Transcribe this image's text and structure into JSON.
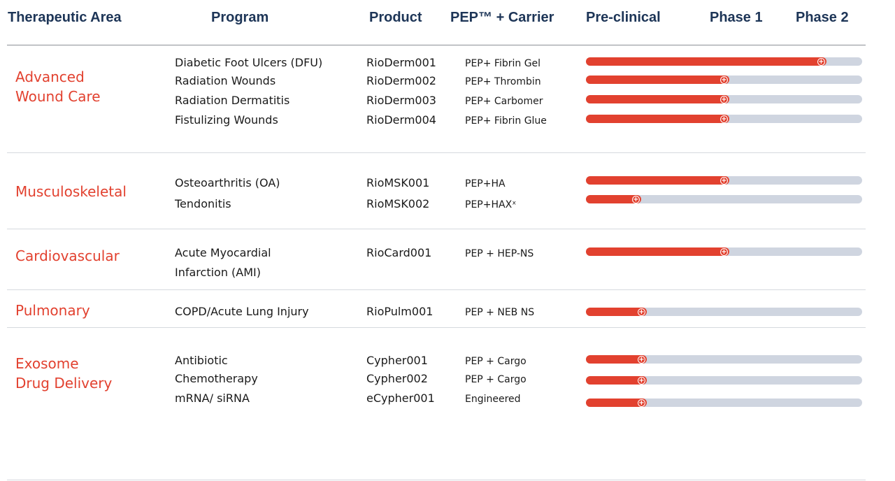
{
  "headers": {
    "area": "Therapeutic Area",
    "program": "Program",
    "product": "Product",
    "carrier": "PEP™ + Carrier",
    "preclinical": "Pre-clinical",
    "phase1": "Phase 1",
    "phase2": "Phase 2"
  },
  "colors": {
    "accent": "#e2412f",
    "header": "#1d3557",
    "track": "#cfd5e0"
  },
  "knob_icon": "plus-circle-icon",
  "areas": [
    {
      "name": "Advanced\nWound Care"
    },
    {
      "name": "Musculoskeletal"
    },
    {
      "name": "Cardiovascular"
    },
    {
      "name": "Pulmonary"
    },
    {
      "name": "Exosome\nDrug Delivery"
    }
  ],
  "programs": [
    {
      "program": "Diabetic Foot Ulcers (DFU)",
      "product": "RioDerm001",
      "carrier": "PEP+ Fibrin Gel"
    },
    {
      "program": "Radiation Wounds",
      "product": "RioDerm002",
      "carrier": "PEP+ Thrombin"
    },
    {
      "program": "Radiation Dermatitis",
      "product": "RioDerm003",
      "carrier": "PEP+ Carbomer"
    },
    {
      "program": "Fistulizing Wounds",
      "product": "RioDerm004",
      "carrier": "PEP+ Fibrin Glue"
    },
    {
      "program": "Osteoarthritis (OA)",
      "product": "RioMSK001",
      "carrier": "PEP+HA"
    },
    {
      "program": "Tendonitis",
      "product": "RioMSK002",
      "carrier": "PEP+HAXˣ"
    },
    {
      "program": "Acute Myocardial",
      "product": "RioCard001",
      "carrier": "PEP + HEP-NS"
    },
    {
      "program": "Infarction (AMI)",
      "product": "",
      "carrier": ""
    },
    {
      "program": "COPD/Acute Lung Injury",
      "product": "RioPulm001",
      "carrier": "PEP + NEB NS"
    },
    {
      "program": "Antibiotic",
      "product": "Cypher001",
      "carrier": "PEP + Cargo"
    },
    {
      "program": "Chemotherapy",
      "product": "Cypher002",
      "carrier": "PEP + Cargo"
    },
    {
      "program": "mRNA/ siRNA",
      "product": "eCypher001",
      "carrier": "Engineered"
    }
  ],
  "chart_data": {
    "type": "bar",
    "orientation": "horizontal",
    "categories": [
      "RioDerm001",
      "RioDerm002",
      "RioDerm003",
      "RioDerm004",
      "RioMSK001",
      "RioMSK002",
      "RioCard001",
      "RioPulm001",
      "Cypher001",
      "Cypher002",
      "eCypher001"
    ],
    "stage_labels": [
      "Pre-clinical",
      "Phase 1",
      "Phase 2"
    ],
    "progress": [
      0.87,
      0.52,
      0.52,
      0.52,
      0.52,
      0.2,
      0.52,
      0.22,
      0.22,
      0.22,
      0.22
    ]
  }
}
